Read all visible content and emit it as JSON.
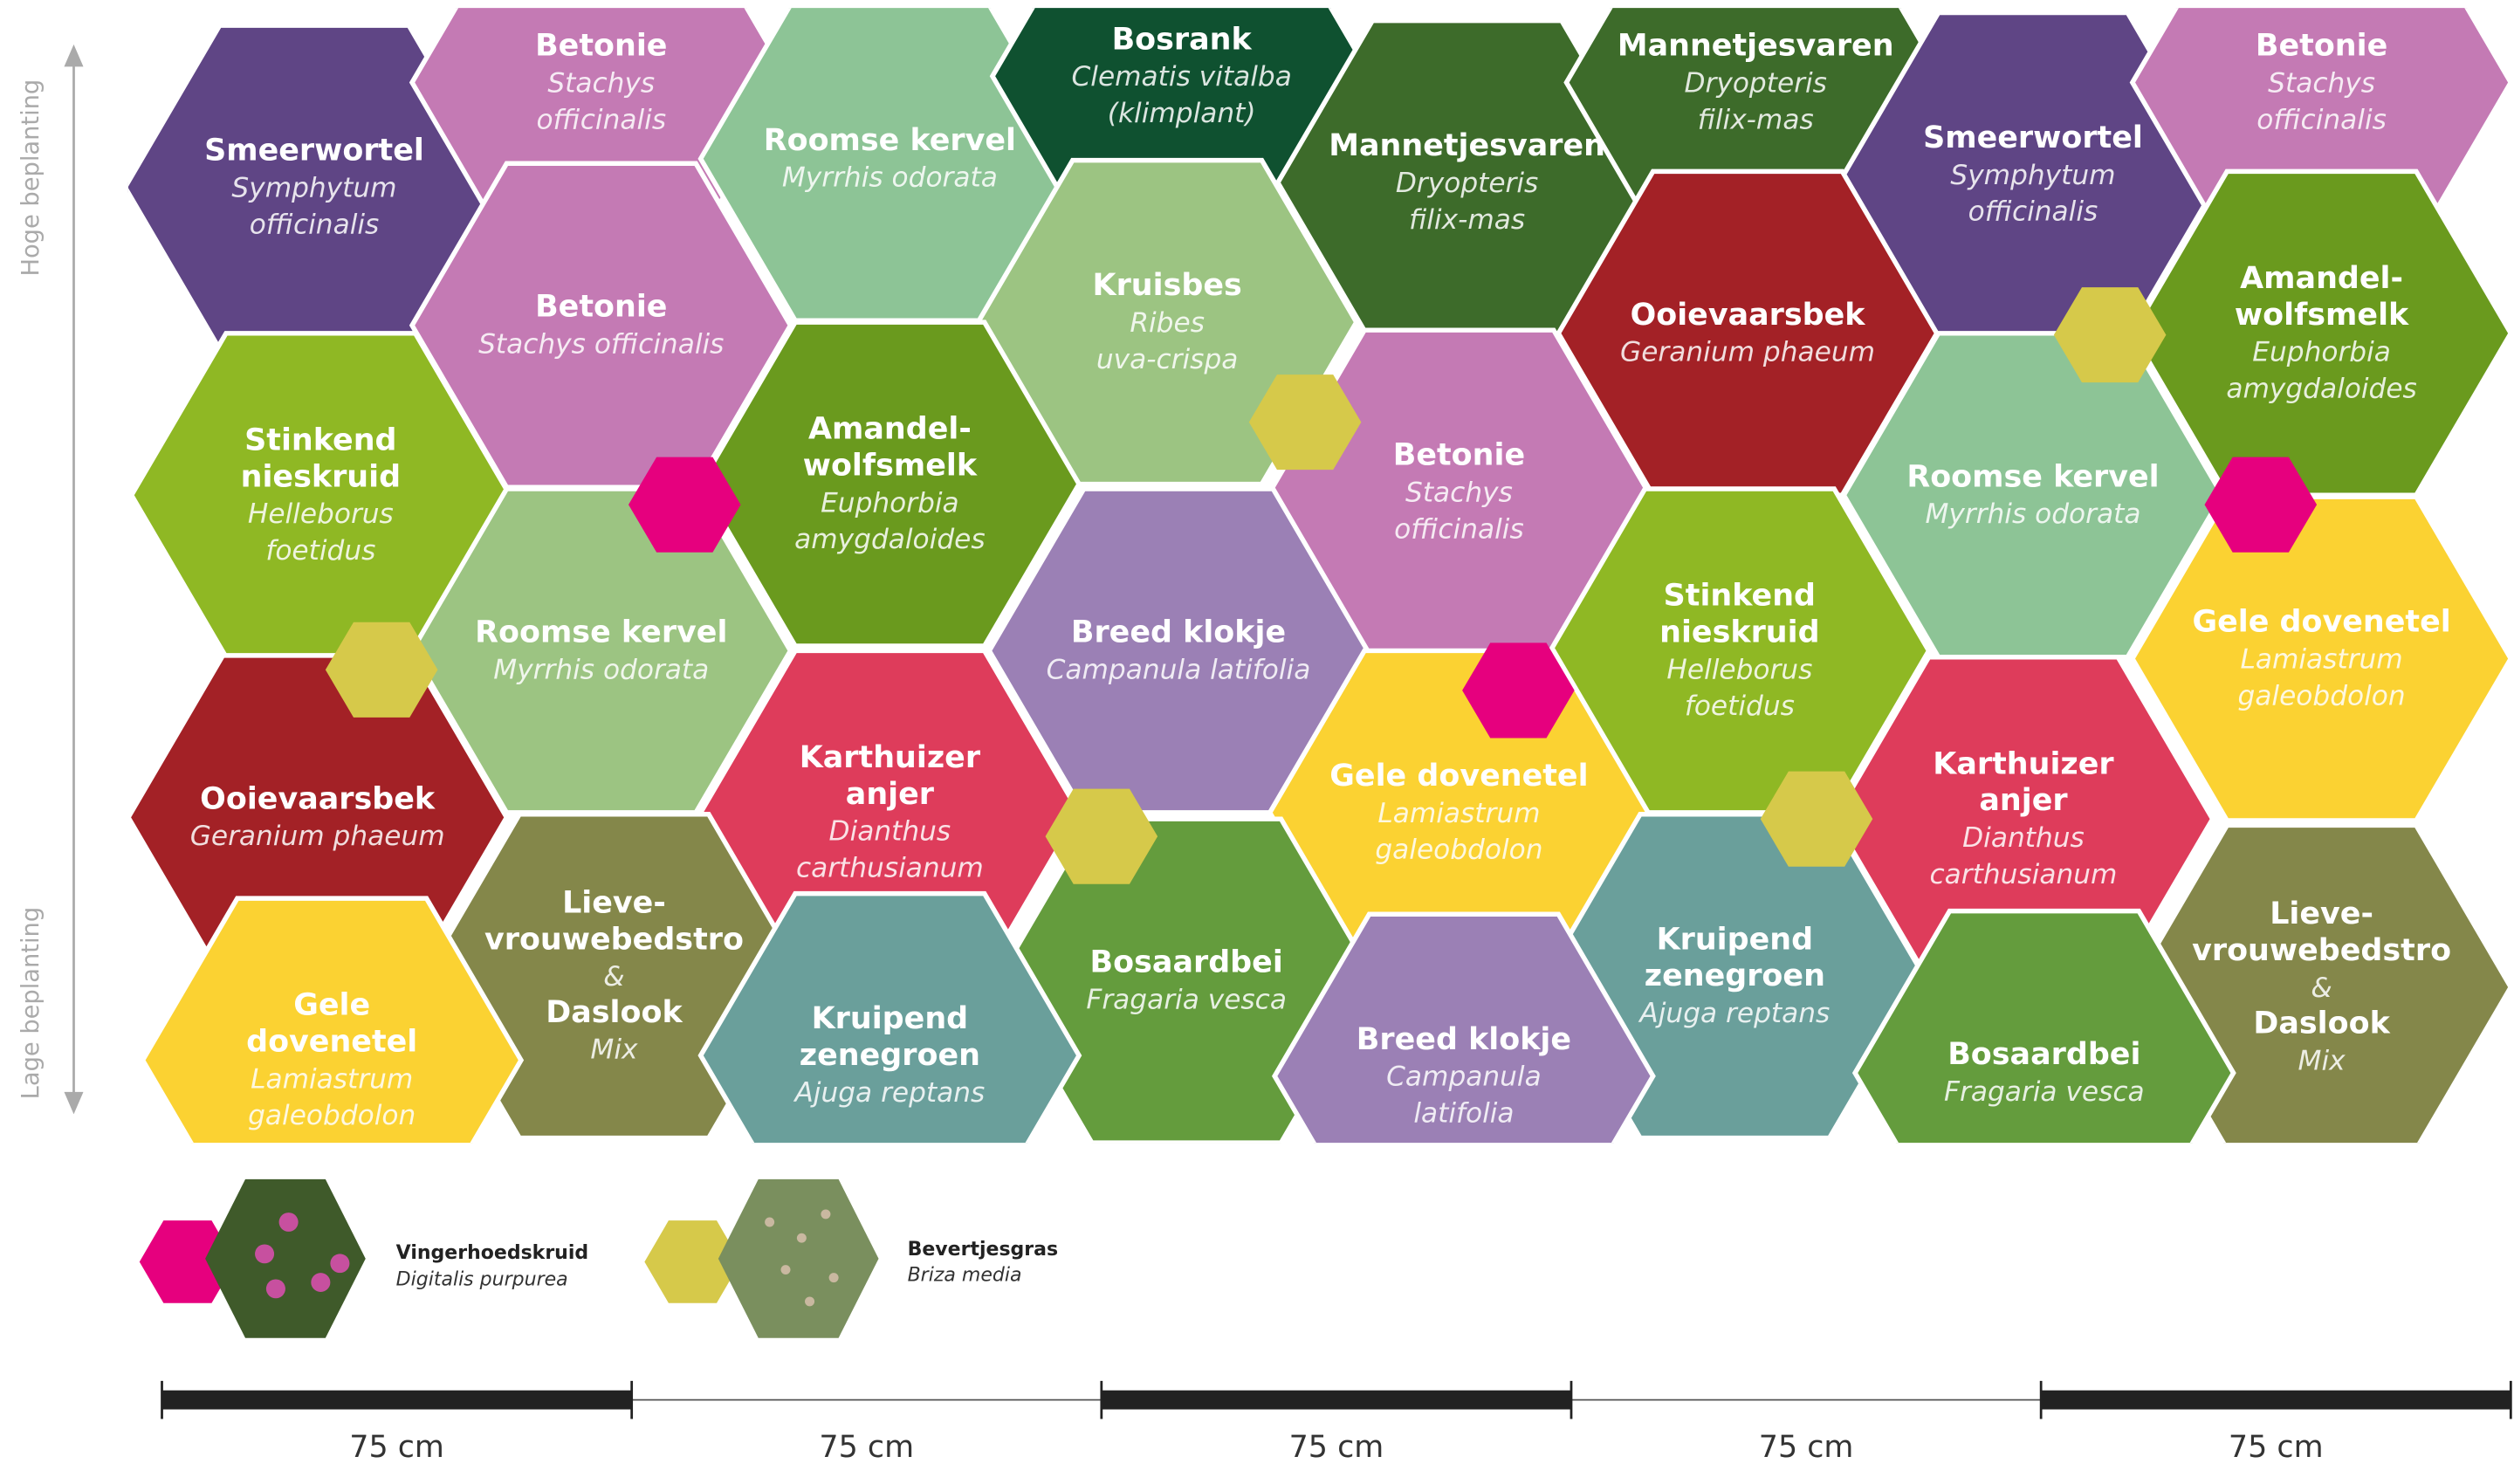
{
  "axis_labels": {
    "top": "Hoge beplanting",
    "bottom": "Lage beplanting"
  },
  "cells": [
    {
      "name": "Smeerwortel",
      "latin": "Symphytum officinalis"
    },
    {
      "name": "Betonie",
      "latin": "Stachys officinalis"
    },
    {
      "name": "Roomse kervel",
      "latin": "Myrrhis odorata"
    },
    {
      "name": "Bosrank",
      "latin": "Clematis vitalba (klimplant)"
    },
    {
      "name": "Mannetjesvaren",
      "latin": "Dryopteris filix-mas"
    },
    {
      "name": "Mannetjesvaren",
      "latin": "Dryopteris filix-mas"
    },
    {
      "name": "Smeerwortel",
      "latin": "Symphytum officinalis"
    },
    {
      "name": "Betonie",
      "latin": "Stachys officinalis"
    },
    {
      "name": "Betonie",
      "latin": "Stachys officinalis"
    },
    {
      "name": "Kruisbes",
      "latin": "Ribes uva-crispa"
    },
    {
      "name": "Ooievaarsbek",
      "latin": "Geranium phaeum"
    },
    {
      "name": "Amandel-wolfsmelk",
      "latin": "Euphorbia amygdaloides"
    },
    {
      "name": "Stinkend nieskruid",
      "latin": "Helleborus foetidus"
    },
    {
      "name": "Amandel-wolfsmelk",
      "latin": "Euphorbia amygdaloides"
    },
    {
      "name": "Betonie",
      "latin": "Stachys officinalis"
    },
    {
      "name": "Roomse kervel",
      "latin": "Myrrhis odorata"
    },
    {
      "name": "Roomse kervel",
      "latin": "Myrrhis odorata"
    },
    {
      "name": "Breed klokje",
      "latin": "Campanula latifolia"
    },
    {
      "name": "Stinkend nieskruid",
      "latin": "Helleborus foetidus"
    },
    {
      "name": "Gele dovenetel",
      "latin": "Lamiastrum galeobdolon"
    },
    {
      "name": "Ooievaarsbek",
      "latin": "Geranium phaeum"
    },
    {
      "name": "Karthuizer anjer",
      "latin": "Dianthus carthusianum"
    },
    {
      "name": "Gele dovenetel",
      "latin": "Lamiastrum galeobdolon"
    },
    {
      "name": "Karthuizer anjer",
      "latin": "Dianthus carthusianum"
    },
    {
      "name": "Lieve-vrouwebedstro",
      "joiner": "&",
      "name2": "Daslook",
      "latin": "Mix"
    },
    {
      "name": "Bosaardbei",
      "latin": "Fragaria vesca"
    },
    {
      "name": "Kruipend zenegroen",
      "latin": "Ajuga reptans"
    },
    {
      "name": "Lieve-vrouwebedstro",
      "joiner": "&",
      "name2": "Daslook",
      "latin": "Mix"
    },
    {
      "name": "Gele dovenetel",
      "latin": "Lamiastrum galeobdolon"
    },
    {
      "name": "Kruipend zenegroen",
      "latin": "Ajuga reptans"
    },
    {
      "name": "Breed klokje",
      "latin": "Campanula latifolia"
    },
    {
      "name": "Bosaardbei",
      "latin": "Fragaria vesca"
    }
  ],
  "legend": [
    {
      "name": "Vingerhoedskruid",
      "latin": "Digitalis purpurea"
    },
    {
      "name": "Bevertjesgras",
      "latin": "Briza media"
    }
  ],
  "scale": [
    "75 cm",
    "75 cm",
    "75 cm",
    "75 cm",
    "75 cm"
  ]
}
